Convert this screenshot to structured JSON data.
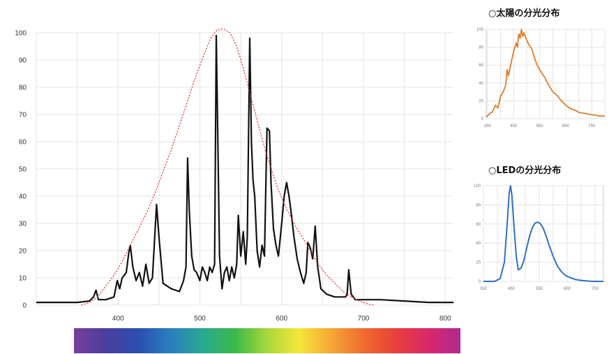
{
  "chart_data": [
    {
      "type": "line",
      "title": "",
      "xlabel": "",
      "ylabel": "",
      "xlim": [
        300,
        810
      ],
      "ylim": [
        0,
        100
      ],
      "x_ticks": [
        400,
        500,
        600,
        700,
        800
      ],
      "x_tick_labels": [
        "400",
        "500",
        "600",
        "700",
        "800"
      ],
      "y_ticks": [
        0,
        10,
        20,
        30,
        40,
        50,
        60,
        70,
        80,
        90,
        100
      ],
      "y_tick_labels": [
        "0",
        "10",
        "20",
        "30",
        "40",
        "50",
        "60",
        "70",
        "80",
        "90",
        "100"
      ],
      "grid": true,
      "series": [
        {
          "style": "solid",
          "color": "#111111",
          "points": [
            [
              300,
              1
            ],
            [
              350,
              1
            ],
            [
              365,
              1.5
            ],
            [
              370,
              3
            ],
            [
              373,
              5.5
            ],
            [
              376,
              2
            ],
            [
              385,
              2
            ],
            [
              395,
              3
            ],
            [
              399,
              9
            ],
            [
              402,
              6
            ],
            [
              405,
              10
            ],
            [
              410,
              12
            ],
            [
              413,
              19
            ],
            [
              415,
              22
            ],
            [
              418,
              14
            ],
            [
              422,
              9
            ],
            [
              426,
              12
            ],
            [
              430,
              7
            ],
            [
              434,
              15
            ],
            [
              438,
              8
            ],
            [
              442,
              10
            ],
            [
              447,
              37
            ],
            [
              450,
              25
            ],
            [
              455,
              8
            ],
            [
              465,
              6
            ],
            [
              475,
              5
            ],
            [
              480,
              9
            ],
            [
              483,
              14
            ],
            [
              485,
              54
            ],
            [
              487,
              35
            ],
            [
              490,
              18
            ],
            [
              493,
              13
            ],
            [
              496,
              12
            ],
            [
              500,
              9
            ],
            [
              503,
              14
            ],
            [
              506,
              12
            ],
            [
              509,
              9
            ],
            [
              512,
              14
            ],
            [
              515,
              12
            ],
            [
              518,
              15
            ],
            [
              520,
              99
            ],
            [
              522,
              60
            ],
            [
              524,
              18
            ],
            [
              527,
              6
            ],
            [
              530,
              12
            ],
            [
              533,
              14
            ],
            [
              536,
              9
            ],
            [
              539,
              14
            ],
            [
              542,
              10
            ],
            [
              545,
              15
            ],
            [
              547,
              33
            ],
            [
              550,
              18
            ],
            [
              553,
              27
            ],
            [
              556,
              15
            ],
            [
              558,
              25
            ],
            [
              561,
              98
            ],
            [
              563,
              60
            ],
            [
              565,
              46
            ],
            [
              567,
              40
            ],
            [
              570,
              20
            ],
            [
              573,
              14
            ],
            [
              576,
              22
            ],
            [
              579,
              18
            ],
            [
              582,
              65
            ],
            [
              585,
              64
            ],
            [
              587,
              45
            ],
            [
              590,
              28
            ],
            [
              593,
              22
            ],
            [
              596,
              18
            ],
            [
              600,
              30
            ],
            [
              603,
              40
            ],
            [
              606,
              45
            ],
            [
              609,
              40
            ],
            [
              612,
              33
            ],
            [
              615,
              25
            ],
            [
              619,
              17
            ],
            [
              623,
              12
            ],
            [
              627,
              8
            ],
            [
              630,
              12
            ],
            [
              632,
              23
            ],
            [
              635,
              21
            ],
            [
              638,
              17
            ],
            [
              641,
              29
            ],
            [
              644,
              14
            ],
            [
              648,
              6
            ],
            [
              655,
              4
            ],
            [
              665,
              3
            ],
            [
              678,
              3
            ],
            [
              680,
              4
            ],
            [
              682,
              13
            ],
            [
              685,
              4
            ],
            [
              690,
              2
            ],
            [
              700,
              2
            ],
            [
              720,
              2
            ],
            [
              750,
              1.5
            ],
            [
              780,
              1
            ],
            [
              810,
              1
            ]
          ]
        },
        {
          "style": "dotted",
          "color": "#e04040",
          "points": [
            [
              355,
              0
            ],
            [
              365,
              1
            ],
            [
              375,
              3
            ],
            [
              385,
              7
            ],
            [
              395,
              11
            ],
            [
              405,
              16
            ],
            [
              415,
              22
            ],
            [
              425,
              28
            ],
            [
              435,
              34
            ],
            [
              445,
              41
            ],
            [
              455,
              49
            ],
            [
              465,
              57
            ],
            [
              475,
              66
            ],
            [
              485,
              75
            ],
            [
              495,
              84
            ],
            [
              505,
              92
            ],
            [
              513,
              98
            ],
            [
              521,
              101
            ],
            [
              529,
              101.5
            ],
            [
              537,
              100
            ],
            [
              545,
              95
            ],
            [
              553,
              87
            ],
            [
              561,
              78
            ],
            [
              569,
              69
            ],
            [
              577,
              60
            ],
            [
              585,
              52
            ],
            [
              595,
              43
            ],
            [
              605,
              36
            ],
            [
              615,
              30
            ],
            [
              625,
              25
            ],
            [
              635,
              20
            ],
            [
              645,
              15
            ],
            [
              655,
              11
            ],
            [
              665,
              8
            ],
            [
              675,
              5
            ],
            [
              685,
              3
            ],
            [
              695,
              1.5
            ],
            [
              705,
              0.5
            ],
            [
              712,
              0
            ]
          ]
        }
      ]
    },
    {
      "type": "line",
      "title": "○太陽の分光分布",
      "xlim": [
        345,
        800
      ],
      "ylim": [
        0,
        100
      ],
      "x_ticks": [
        350,
        450,
        550,
        650,
        750
      ],
      "x_tick_labels": [
        "350",
        "450",
        "550",
        "650",
        "750"
      ],
      "y_ticks": [
        0,
        20,
        40,
        60,
        80,
        100
      ],
      "y_tick_labels": [
        "0",
        "20",
        "40",
        "60",
        "80",
        "100"
      ],
      "grid": true,
      "series": [
        {
          "color": "#e07b2a",
          "points": [
            [
              345,
              2
            ],
            [
              360,
              6
            ],
            [
              370,
              8
            ],
            [
              380,
              15
            ],
            [
              390,
              12
            ],
            [
              400,
              25
            ],
            [
              410,
              30
            ],
            [
              420,
              38
            ],
            [
              425,
              55
            ],
            [
              430,
              48
            ],
            [
              440,
              62
            ],
            [
              450,
              75
            ],
            [
              460,
              85
            ],
            [
              465,
              80
            ],
            [
              470,
              95
            ],
            [
              475,
              90
            ],
            [
              480,
              100
            ],
            [
              485,
              92
            ],
            [
              490,
              96
            ],
            [
              500,
              88
            ],
            [
              510,
              82
            ],
            [
              520,
              78
            ],
            [
              530,
              68
            ],
            [
              540,
              60
            ],
            [
              550,
              55
            ],
            [
              560,
              50
            ],
            [
              570,
              46
            ],
            [
              580,
              40
            ],
            [
              590,
              35
            ],
            [
              600,
              30
            ],
            [
              610,
              28
            ],
            [
              620,
              25
            ],
            [
              630,
              21
            ],
            [
              640,
              18
            ],
            [
              650,
              15
            ],
            [
              660,
              13
            ],
            [
              670,
              11
            ],
            [
              680,
              10
            ],
            [
              690,
              9
            ],
            [
              700,
              7
            ],
            [
              720,
              6
            ],
            [
              740,
              5
            ],
            [
              760,
              4
            ],
            [
              780,
              3
            ],
            [
              800,
              3
            ]
          ]
        }
      ]
    },
    {
      "type": "line",
      "title": "○LEDの分光分布",
      "xlim": [
        350,
        780
      ],
      "ylim": [
        0,
        100
      ],
      "x_ticks": [
        350,
        450,
        550,
        650,
        750
      ],
      "x_tick_labels": [
        "350",
        "450",
        "550",
        "650",
        "750"
      ],
      "y_ticks": [
        0,
        20,
        40,
        60,
        80,
        100
      ],
      "y_tick_labels": [
        "0",
        "20",
        "40",
        "60",
        "80",
        "100"
      ],
      "grid": true,
      "series": [
        {
          "color": "#2f6fc6",
          "points": [
            [
              350,
              0
            ],
            [
              390,
              0
            ],
            [
              410,
              3
            ],
            [
              425,
              20
            ],
            [
              435,
              60
            ],
            [
              442,
              92
            ],
            [
              447,
              100
            ],
            [
              452,
              90
            ],
            [
              460,
              55
            ],
            [
              468,
              25
            ],
            [
              475,
              12
            ],
            [
              485,
              14
            ],
            [
              495,
              22
            ],
            [
              505,
              35
            ],
            [
              515,
              47
            ],
            [
              525,
              56
            ],
            [
              535,
              61
            ],
            [
              545,
              62
            ],
            [
              555,
              60
            ],
            [
              565,
              55
            ],
            [
              575,
              47
            ],
            [
              585,
              38
            ],
            [
              600,
              26
            ],
            [
              615,
              16
            ],
            [
              630,
              10
            ],
            [
              645,
              6
            ],
            [
              660,
              4
            ],
            [
              680,
              2
            ],
            [
              700,
              1
            ],
            [
              740,
              0
            ],
            [
              780,
              0
            ]
          ]
        }
      ]
    }
  ],
  "spectrum_bar": {
    "colors": [
      "#7a3f9e",
      "#4a3f9e",
      "#2b4fb0",
      "#2a7fc0",
      "#2aa890",
      "#3cb84a",
      "#a8d83a",
      "#f5e63a",
      "#f5a636",
      "#ef6a30",
      "#e8403a",
      "#d8286a",
      "#b02890"
    ]
  }
}
